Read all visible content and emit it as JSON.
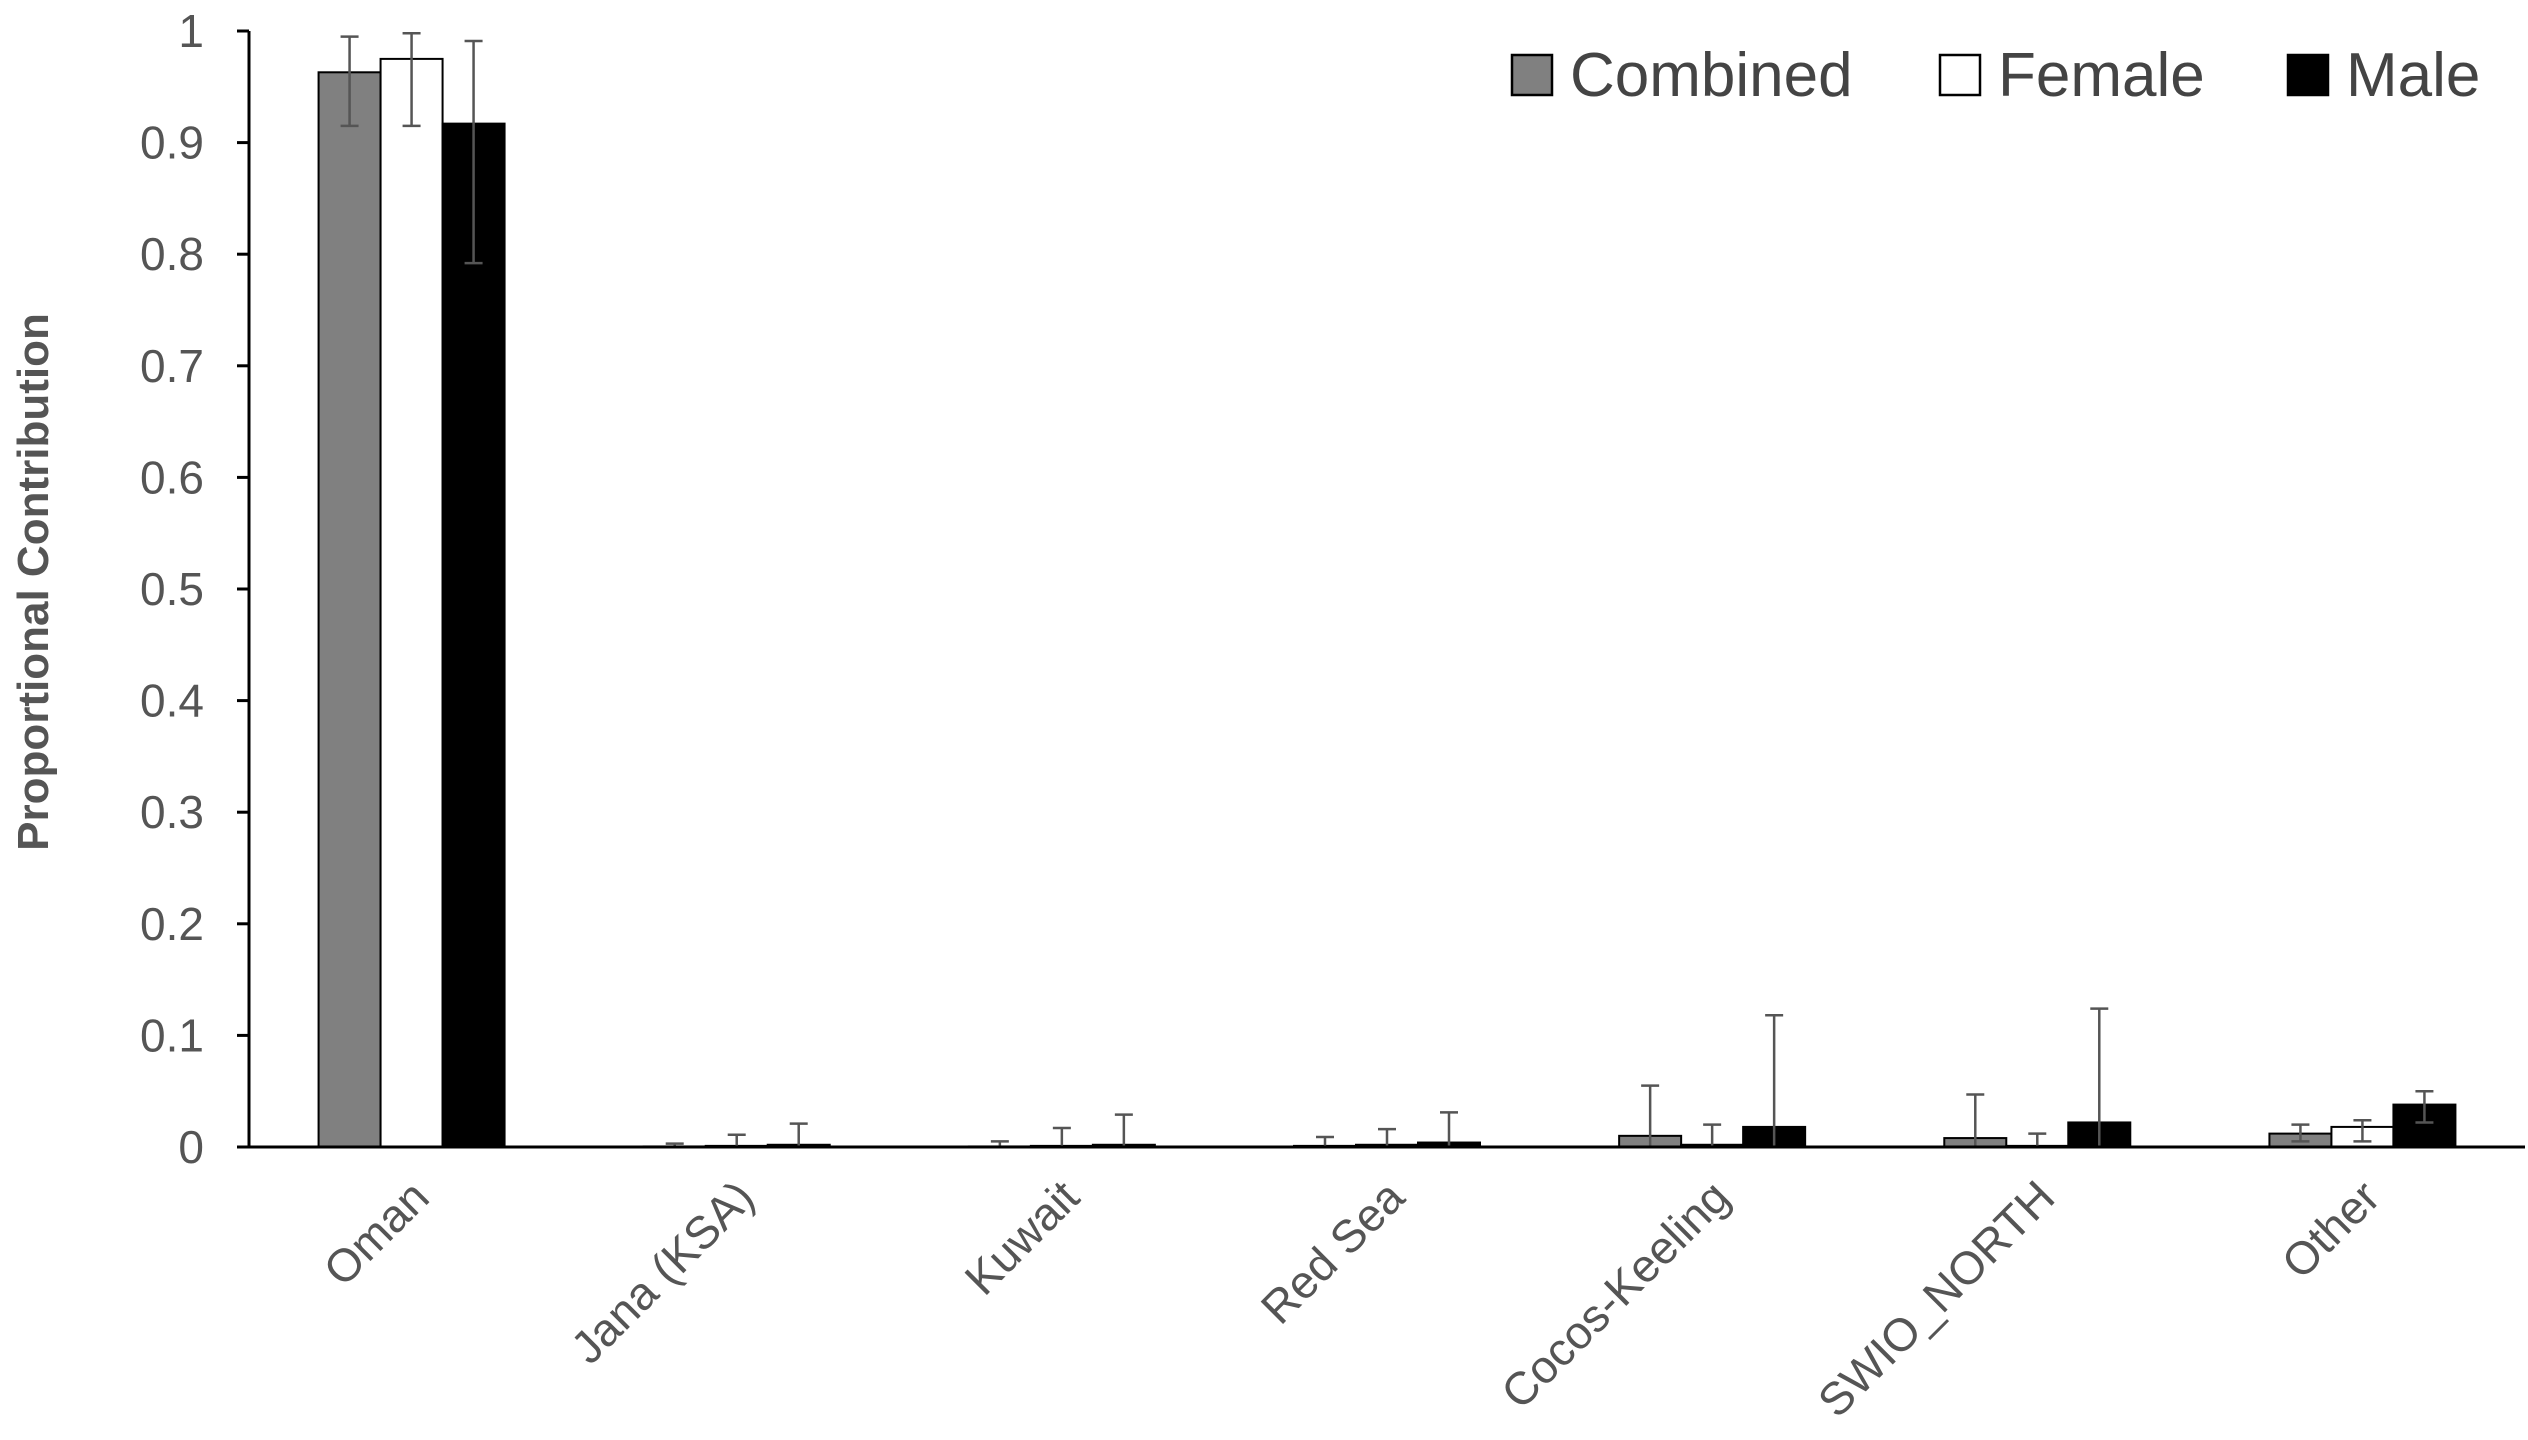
{
  "chart_data": {
    "type": "bar",
    "title": "",
    "xlabel": "",
    "ylabel": "Proportional Contribution",
    "ylim": [
      0,
      1
    ],
    "yticks": [
      "0",
      "0.1",
      "0.2",
      "0.3",
      "0.4",
      "0.5",
      "0.6",
      "0.7",
      "0.8",
      "0.9",
      "1"
    ],
    "grid": false,
    "legend_position": "top-right",
    "categories": [
      "Oman",
      "Jana (KSA)",
      "Kuwait",
      "Red Sea",
      "Cocos-Keeling",
      "SWIO_NORTH",
      "Other"
    ],
    "series": [
      {
        "name": "Combined",
        "color": "#808080",
        "values": [
          0.963,
          0.0005,
          0.0005,
          0.001,
          0.01,
          0.008,
          0.012
        ],
        "error_upper": [
          0.995,
          0.003,
          0.005,
          0.009,
          0.055,
          0.047,
          0.02
        ],
        "error_lower": [
          0.915,
          0.0,
          0.0,
          0.0,
          0.0,
          0.0,
          0.005
        ]
      },
      {
        "name": "Female",
        "color": "#ffffff",
        "values": [
          0.975,
          0.001,
          0.001,
          0.002,
          0.002,
          0.001,
          0.018
        ],
        "error_upper": [
          0.998,
          0.011,
          0.017,
          0.016,
          0.02,
          0.012,
          0.024
        ],
        "error_lower": [
          0.915,
          0.0,
          0.0,
          0.0,
          0.0,
          0.0,
          0.005
        ]
      },
      {
        "name": "Male",
        "color": "#000000",
        "values": [
          0.917,
          0.002,
          0.002,
          0.004,
          0.018,
          0.022,
          0.038
        ],
        "error_upper": [
          0.991,
          0.021,
          0.029,
          0.031,
          0.118,
          0.124,
          0.05
        ],
        "error_lower": [
          0.792,
          0.0,
          0.0,
          0.0,
          0.0,
          0.0,
          0.022
        ]
      }
    ]
  }
}
